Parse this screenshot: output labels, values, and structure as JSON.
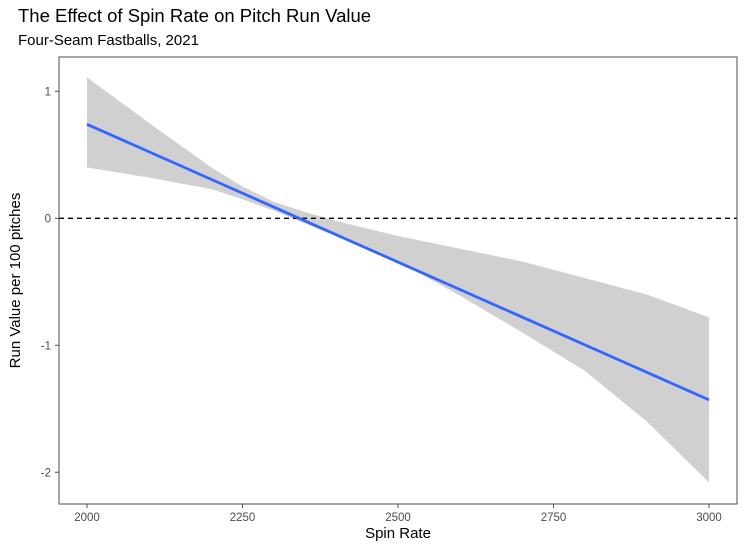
{
  "chart_data": {
    "type": "line",
    "title": "The Effect of Spin Rate on Pitch Run Value",
    "subtitle": "Four-Seam Fastballs, 2021",
    "xlabel": "Spin Rate",
    "ylabel": "Run Value per 100 pitches",
    "xlim": [
      1955,
      3045
    ],
    "ylim": [
      -2.25,
      1.27
    ],
    "x_ticks": [
      2000,
      2250,
      2500,
      2750,
      3000
    ],
    "y_ticks": [
      -2,
      -1,
      0,
      1
    ],
    "grid": false,
    "series": [
      {
        "type": "line",
        "color": "#3366ff",
        "x": [
          2000,
          3000
        ],
        "y": [
          0.74,
          -1.43
        ]
      }
    ],
    "confidence_band": {
      "color": "#d0d0d0",
      "x": [
        2000,
        2100,
        2200,
        2250,
        2300,
        2350,
        2400,
        2500,
        2600,
        2700,
        2800,
        2900,
        3000
      ],
      "upper": [
        1.11,
        0.75,
        0.4,
        0.25,
        0.13,
        0.05,
        -0.02,
        -0.14,
        -0.24,
        -0.34,
        -0.47,
        -0.6,
        -0.78
      ],
      "lower": [
        0.4,
        0.32,
        0.23,
        0.15,
        0.06,
        -0.04,
        -0.14,
        -0.34,
        -0.61,
        -0.9,
        -1.2,
        -1.6,
        -2.08
      ]
    },
    "reference_lines": [
      {
        "axis": "y",
        "value": 0,
        "style": "dashed",
        "color": "#000000"
      }
    ]
  }
}
